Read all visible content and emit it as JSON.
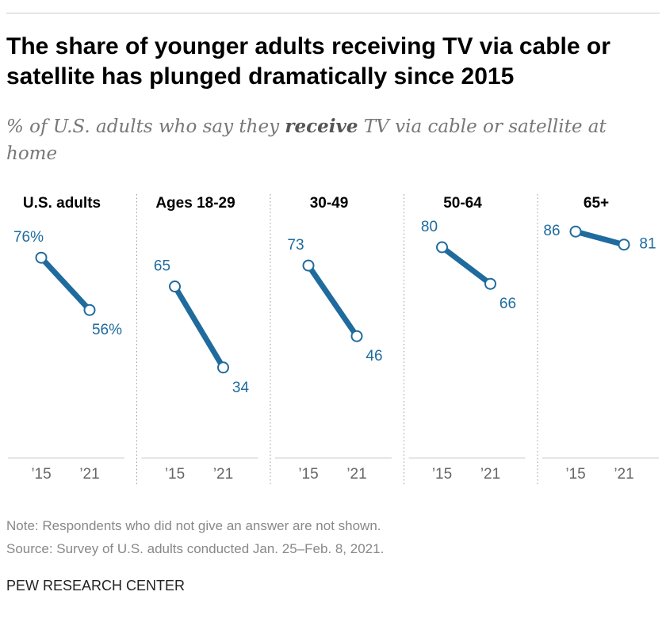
{
  "header": {
    "title": "The share of younger adults receiving TV via cable or satellite has plunged dramatically since 2015",
    "subtitle": [
      "% of U.S. adults who say they ",
      "receive",
      " TV via cable or satellite at home"
    ]
  },
  "chart_data": [
    {
      "type": "line",
      "title": "U.S. adults",
      "categories": [
        "’15",
        "’21"
      ],
      "values": [
        76,
        56
      ],
      "value_labels": [
        "76%",
        "56%"
      ],
      "color": "#1f6b9e",
      "ylim": [
        0,
        100
      ]
    },
    {
      "type": "line",
      "title": "Ages 18-29",
      "categories": [
        "’15",
        "’21"
      ],
      "values": [
        65,
        34
      ],
      "color": "#1f6b9e",
      "ylim": [
        0,
        100
      ]
    },
    {
      "type": "line",
      "title": "30-49",
      "categories": [
        "’15",
        "’21"
      ],
      "values": [
        73,
        46
      ],
      "color": "#1f6b9e",
      "ylim": [
        0,
        100
      ]
    },
    {
      "type": "line",
      "title": "50-64",
      "categories": [
        "’15",
        "’21"
      ],
      "values": [
        80,
        66
      ],
      "color": "#1f6b9e",
      "ylim": [
        0,
        100
      ]
    },
    {
      "type": "line",
      "title": "65+",
      "categories": [
        "’15",
        "’21"
      ],
      "values": [
        86,
        81
      ],
      "color": "#1f6b9e",
      "ylim": [
        0,
        100
      ]
    }
  ],
  "footer": {
    "note": "Note: Respondents who did not give an answer are not shown.",
    "source": "Source: Survey of U.S. adults conducted Jan. 25–Feb. 8, 2021.",
    "brand": "PEW RESEARCH CENTER"
  }
}
